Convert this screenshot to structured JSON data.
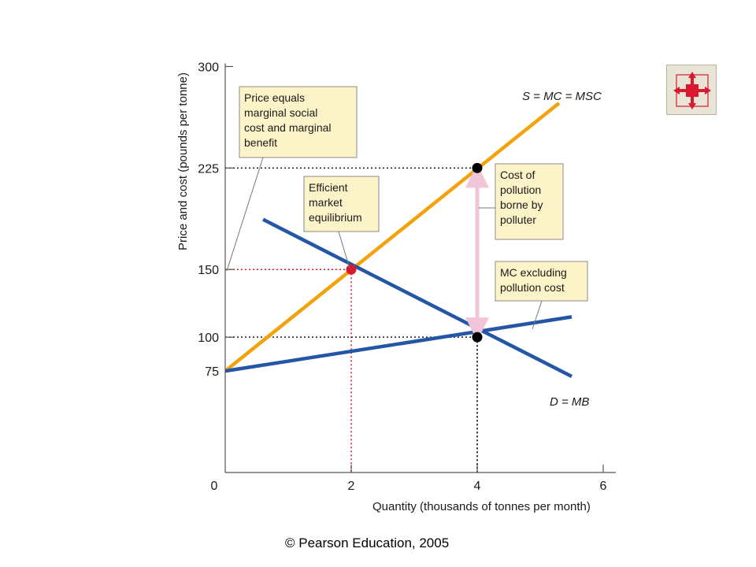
{
  "copyright": "© Pearson Education, 2005",
  "nav_button": {
    "icon": "expand-arrows-icon",
    "color": "#d8192e"
  },
  "chart_data": {
    "type": "line",
    "xlabel": "Quantity (thousands of tonnes per month)",
    "ylabel": "Price and cost (pounds per tonne)",
    "xlim": [
      0,
      6
    ],
    "ylim": [
      0,
      300
    ],
    "x_ticks": [
      {
        "value": 0,
        "label": "0",
        "color": "#1a1a1a"
      },
      {
        "value": 2,
        "label": "2",
        "color": "#d8192e"
      },
      {
        "value": 4,
        "label": "4",
        "color": "#1a1a1a"
      },
      {
        "value": 6,
        "label": "6",
        "color": "#1a1a1a"
      }
    ],
    "y_ticks": [
      {
        "value": 75,
        "label": "75",
        "color": "#1a1a1a"
      },
      {
        "value": 100,
        "label": "100",
        "color": "#1a1a1a"
      },
      {
        "value": 150,
        "label": "150",
        "color": "#d8192e"
      },
      {
        "value": 225,
        "label": "225",
        "color": "#1a1a1a"
      },
      {
        "value": 300,
        "label": "300",
        "color": "#1a1a1a"
      }
    ],
    "series": [
      {
        "name": "S = MC = MSC",
        "color": "#f2a20c",
        "points": [
          [
            0,
            75
          ],
          [
            5.3,
            273
          ]
        ]
      },
      {
        "name": "D = MB",
        "color": "#2456a6",
        "points": [
          [
            0.6,
            187
          ],
          [
            5.5,
            71
          ]
        ]
      },
      {
        "name": "MC excluding pollution cost",
        "color": "#2456a6",
        "points": [
          [
            0,
            75
          ],
          [
            5.5,
            115
          ]
        ]
      }
    ],
    "points": [
      {
        "name": "efficient-equilibrium",
        "x": 2,
        "y": 150,
        "color": "#d8192e"
      },
      {
        "name": "market-equilibrium",
        "x": 4,
        "y": 100,
        "color": "#000000"
      },
      {
        "name": "msc-at-market-quantity",
        "x": 4,
        "y": 225,
        "color": "#000000"
      }
    ],
    "guides": [
      {
        "name": "guide-150",
        "color": "#d8192e",
        "x": 2,
        "y": 150
      },
      {
        "name": "guide-225",
        "color": "#1a1a1a",
        "x": 4,
        "y": 225
      },
      {
        "name": "guide-100",
        "color": "#1a1a1a",
        "x": 4,
        "y": 100
      }
    ],
    "pollution_cost_arrow": {
      "x": 4,
      "from": 100,
      "to": 225,
      "color": "#f2c4d8"
    },
    "line_labels": {
      "supply": "S = MC = MSC",
      "demand": "D = MB"
    },
    "annotations": [
      {
        "id": "price-equals",
        "lines": [
          "Price equals",
          "marginal social",
          "cost and marginal",
          "benefit"
        ]
      },
      {
        "id": "efficient",
        "lines": [
          "Efficient",
          "market",
          "equilibrium"
        ]
      },
      {
        "id": "pollution-cost",
        "lines": [
          "Cost of",
          "pollution",
          "borne by",
          "polluter"
        ]
      },
      {
        "id": "mc-excluding",
        "lines": [
          "MC excluding",
          "pollution cost"
        ]
      }
    ]
  }
}
